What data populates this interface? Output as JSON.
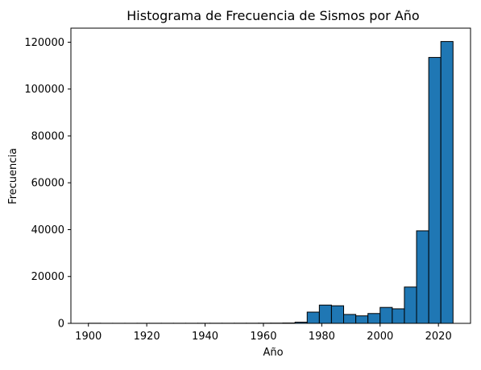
{
  "chart_data": {
    "type": "bar",
    "title": "Histograma de Frecuencia de Sismos por Año",
    "xlabel": "Año",
    "ylabel": "Frecuencia",
    "xlim": [
      1894,
      2031
    ],
    "ylim": [
      0,
      126000
    ],
    "xticks": [
      1900,
      1920,
      1940,
      1960,
      1980,
      2000,
      2020
    ],
    "yticks": [
      0,
      20000,
      40000,
      60000,
      80000,
      100000,
      120000
    ],
    "grid": false,
    "bar_color": "#1f77b4",
    "edge_color": "#000000",
    "bins": [
      {
        "start": 1900.0,
        "end": 1904.17,
        "value": 50
      },
      {
        "start": 1904.17,
        "end": 1908.33,
        "value": 30
      },
      {
        "start": 1908.33,
        "end": 1912.5,
        "value": 30
      },
      {
        "start": 1912.5,
        "end": 1916.67,
        "value": 30
      },
      {
        "start": 1916.67,
        "end": 1920.83,
        "value": 40
      },
      {
        "start": 1920.83,
        "end": 1925.0,
        "value": 40
      },
      {
        "start": 1925.0,
        "end": 1929.17,
        "value": 40
      },
      {
        "start": 1929.17,
        "end": 1933.33,
        "value": 40
      },
      {
        "start": 1933.33,
        "end": 1937.5,
        "value": 40
      },
      {
        "start": 1937.5,
        "end": 1941.67,
        "value": 50
      },
      {
        "start": 1941.67,
        "end": 1945.83,
        "value": 50
      },
      {
        "start": 1945.83,
        "end": 1950.0,
        "value": 50
      },
      {
        "start": 1950.0,
        "end": 1954.17,
        "value": 60
      },
      {
        "start": 1954.17,
        "end": 1958.33,
        "value": 60
      },
      {
        "start": 1958.33,
        "end": 1962.5,
        "value": 80
      },
      {
        "start": 1962.5,
        "end": 1966.67,
        "value": 100
      },
      {
        "start": 1966.67,
        "end": 1970.83,
        "value": 150
      },
      {
        "start": 1970.83,
        "end": 1975.0,
        "value": 500
      },
      {
        "start": 1975.0,
        "end": 1979.17,
        "value": 4800
      },
      {
        "start": 1979.17,
        "end": 1983.33,
        "value": 7800
      },
      {
        "start": 1983.33,
        "end": 1987.5,
        "value": 7500
      },
      {
        "start": 1987.5,
        "end": 1991.67,
        "value": 3800
      },
      {
        "start": 1991.67,
        "end": 1995.83,
        "value": 3200
      },
      {
        "start": 1995.83,
        "end": 2000.0,
        "value": 4200
      },
      {
        "start": 2000.0,
        "end": 2004.17,
        "value": 6800
      },
      {
        "start": 2004.17,
        "end": 2008.33,
        "value": 6200
      },
      {
        "start": 2008.33,
        "end": 2012.5,
        "value": 15500
      },
      {
        "start": 2012.5,
        "end": 2016.67,
        "value": 39500
      },
      {
        "start": 2016.67,
        "end": 2020.83,
        "value": 113500
      },
      {
        "start": 2020.83,
        "end": 2025.0,
        "value": 120300
      }
    ]
  }
}
